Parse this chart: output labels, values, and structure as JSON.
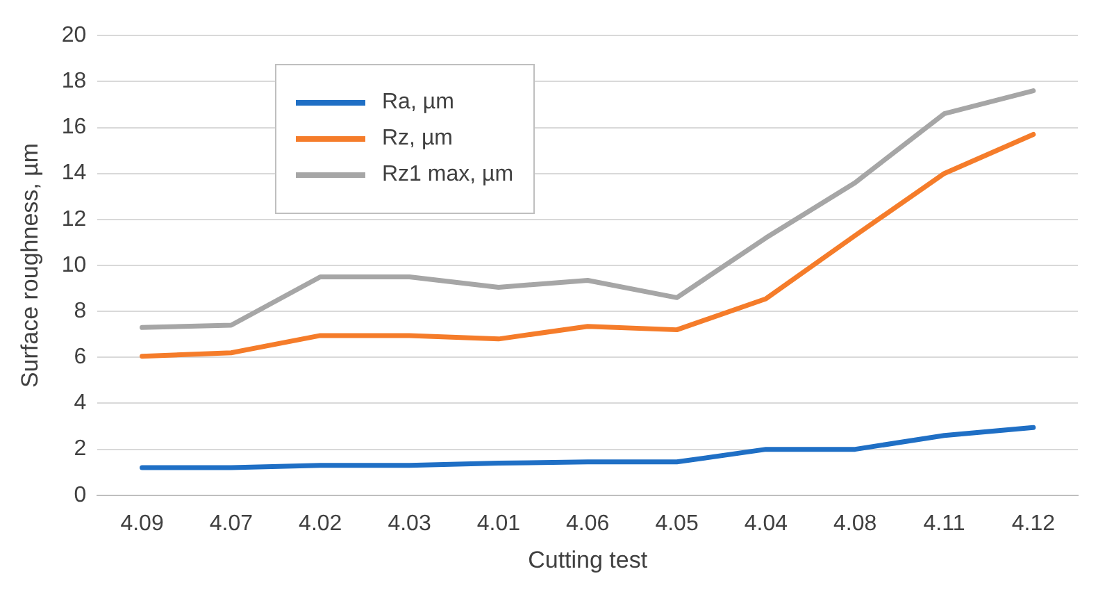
{
  "chart_data": {
    "type": "line",
    "xlabel": "Cutting test",
    "ylabel": "Surface roughness, µm",
    "categories": [
      "4.09",
      "4.07",
      "4.02",
      "4.03",
      "4.01",
      "4.06",
      "4.05",
      "4.04",
      "4.08",
      "4.11",
      "4.12"
    ],
    "series": [
      {
        "name": "Ra, µm",
        "color": "#1f6fc5",
        "values": [
          1.2,
          1.2,
          1.3,
          1.3,
          1.4,
          1.45,
          1.45,
          2.0,
          2.0,
          2.6,
          2.95
        ]
      },
      {
        "name": "Rz, µm",
        "color": "#f57c2a",
        "values": [
          6.05,
          6.2,
          6.95,
          6.95,
          6.8,
          7.35,
          7.2,
          8.55,
          11.3,
          14.0,
          15.7
        ]
      },
      {
        "name": "Rz1 max, µm",
        "color": "#a6a6a6",
        "values": [
          7.3,
          7.4,
          9.5,
          9.5,
          9.05,
          9.35,
          8.6,
          11.2,
          13.6,
          16.6,
          17.6
        ]
      }
    ],
    "ylim": [
      0,
      20
    ],
    "yticks": [
      0,
      2,
      4,
      6,
      8,
      10,
      12,
      14,
      16,
      18,
      20
    ],
    "grid": "y",
    "legend": "top left",
    "marker": "none",
    "line_style": "solid"
  }
}
